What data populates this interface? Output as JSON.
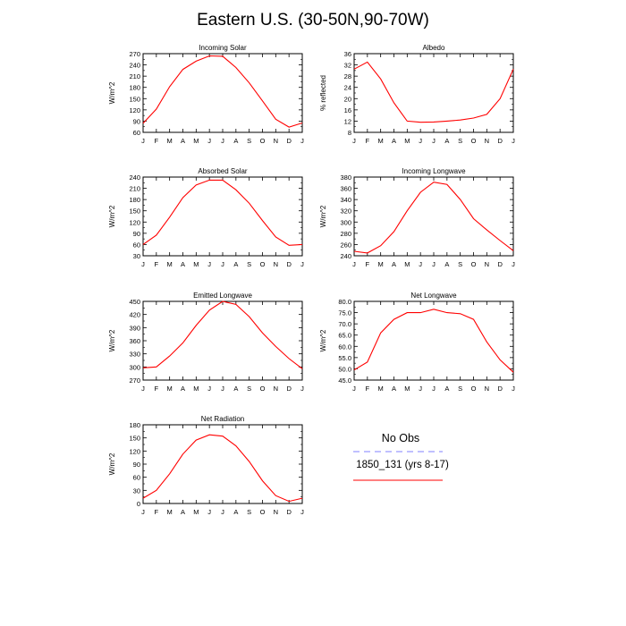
{
  "page": {
    "title": "Eastern U.S. (30-50N,90-70W)"
  },
  "legend": {
    "items": [
      {
        "label": "No Obs",
        "color": "#8080ff",
        "dash": true
      },
      {
        "label": "1850_131 (yrs 8-17)",
        "color": "#ff0000",
        "dash": false
      }
    ]
  },
  "chart_data": [
    {
      "type": "line",
      "title": "Incoming Solar",
      "ylabel": "W/m^2",
      "categories": [
        "J",
        "F",
        "M",
        "A",
        "M",
        "J",
        "J",
        "A",
        "S",
        "O",
        "N",
        "D",
        "J"
      ],
      "ylim": [
        60,
        270
      ],
      "yticks": [
        60,
        90,
        120,
        150,
        180,
        210,
        240,
        270
      ],
      "tick_decimals": 0,
      "series": [
        {
          "color": "#ff0000",
          "values": [
            84,
            122,
            182,
            228,
            250,
            264,
            263,
            233,
            192,
            144,
            95,
            74,
            85
          ]
        }
      ]
    },
    {
      "type": "line",
      "title": "Albedo",
      "ylabel": "% reflected",
      "categories": [
        "J",
        "F",
        "M",
        "A",
        "M",
        "J",
        "J",
        "A",
        "S",
        "O",
        "N",
        "D",
        "J"
      ],
      "ylim": [
        8,
        36
      ],
      "yticks": [
        8,
        12,
        16,
        20,
        24,
        28,
        32,
        36
      ],
      "tick_decimals": 0,
      "series": [
        {
          "color": "#ff0000",
          "values": [
            30.5,
            33,
            27,
            18.5,
            12,
            11.6,
            11.7,
            12,
            12.4,
            13.1,
            14.4,
            20,
            30.5
          ]
        }
      ]
    },
    {
      "type": "line",
      "title": "Absorbed Solar",
      "ylabel": "W/m^2",
      "categories": [
        "J",
        "F",
        "M",
        "A",
        "M",
        "J",
        "J",
        "A",
        "S",
        "O",
        "N",
        "D",
        "J"
      ],
      "ylim": [
        30,
        240
      ],
      "yticks": [
        30,
        60,
        90,
        120,
        150,
        180,
        210,
        240
      ],
      "tick_decimals": 0,
      "series": [
        {
          "color": "#ff0000",
          "values": [
            60,
            85,
            133,
            185,
            219,
            232,
            232,
            206,
            170,
            124,
            80,
            58,
            60
          ]
        }
      ]
    },
    {
      "type": "line",
      "title": "Incoming Longwave",
      "ylabel": "W/m^2",
      "categories": [
        "J",
        "F",
        "M",
        "A",
        "M",
        "J",
        "J",
        "A",
        "S",
        "O",
        "N",
        "D",
        "J"
      ],
      "ylim": [
        240,
        380
      ],
      "yticks": [
        240,
        260,
        280,
        300,
        320,
        340,
        360,
        380
      ],
      "tick_decimals": 0,
      "series": [
        {
          "color": "#ff0000",
          "values": [
            248,
            245,
            258,
            283,
            320,
            353,
            371,
            367,
            340,
            306,
            286,
            267,
            249
          ]
        }
      ]
    },
    {
      "type": "line",
      "title": "Emitted Longwave",
      "ylabel": "W/m^2",
      "categories": [
        "J",
        "F",
        "M",
        "A",
        "M",
        "J",
        "J",
        "A",
        "S",
        "O",
        "N",
        "D",
        "J"
      ],
      "ylim": [
        270,
        450
      ],
      "yticks": [
        270,
        300,
        330,
        360,
        390,
        420,
        450
      ],
      "tick_decimals": 0,
      "series": [
        {
          "color": "#ff0000",
          "values": [
            298,
            300,
            325,
            355,
            395,
            430,
            450,
            443,
            415,
            378,
            347,
            319,
            296
          ]
        }
      ]
    },
    {
      "type": "line",
      "title": "Net Longwave",
      "ylabel": "W/m^2",
      "categories": [
        "J",
        "F",
        "M",
        "A",
        "M",
        "J",
        "J",
        "A",
        "S",
        "O",
        "N",
        "D",
        "J"
      ],
      "ylim": [
        45,
        80
      ],
      "yticks": [
        45,
        50,
        55,
        60,
        65,
        70,
        75,
        80
      ],
      "tick_decimals": 1,
      "series": [
        {
          "color": "#ff0000",
          "values": [
            49.5,
            53,
            66,
            72,
            75,
            75,
            76.5,
            75,
            74.5,
            72,
            62,
            54,
            48.5
          ]
        }
      ]
    },
    {
      "type": "line",
      "title": "Net Radiation",
      "ylabel": "W/m^2",
      "categories": [
        "J",
        "F",
        "M",
        "A",
        "M",
        "J",
        "J",
        "A",
        "S",
        "O",
        "N",
        "D",
        "J"
      ],
      "ylim": [
        0,
        180
      ],
      "yticks": [
        0,
        30,
        60,
        90,
        120,
        150,
        180
      ],
      "tick_decimals": 0,
      "series": [
        {
          "color": "#ff0000",
          "values": [
            12,
            30,
            68,
            113,
            145,
            157,
            154,
            132,
            96,
            52,
            18,
            5,
            12
          ]
        }
      ]
    }
  ]
}
